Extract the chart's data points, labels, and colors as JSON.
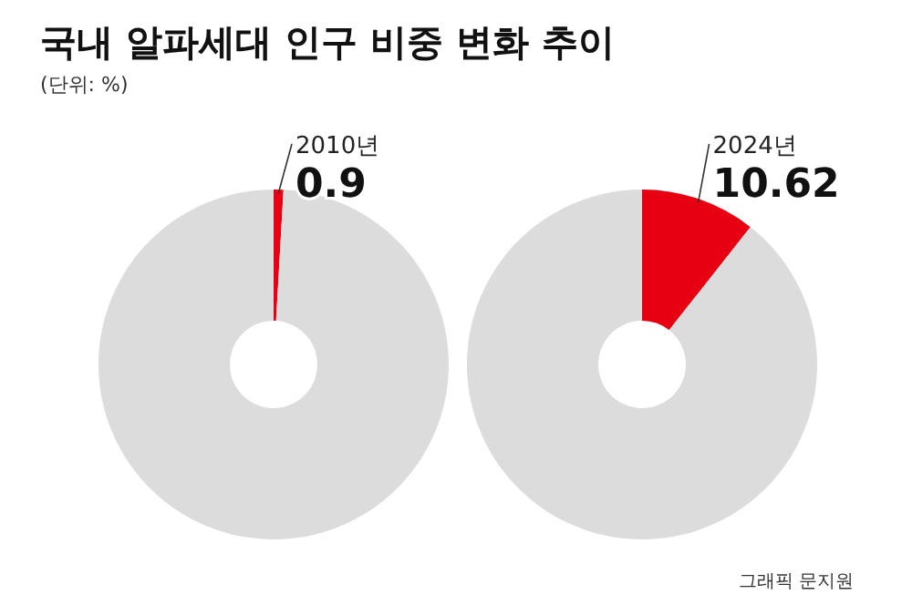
{
  "chart_data": [
    {
      "type": "donut",
      "title": "국내 알파세대 인구 비중 변화 추이",
      "annotations": [
        "(단위: %)"
      ],
      "categories": [
        "2010년",
        null
      ],
      "values": [
        0.9,
        99.1
      ],
      "colors": [
        "#e60012",
        "#dcdcdc"
      ],
      "value_labels": [
        "0.9",
        null
      ]
    },
    {
      "type": "donut",
      "annotations": [
        "그래픽 문지원"
      ],
      "categories": [
        "2024년",
        null
      ],
      "values": [
        10.62,
        89.38
      ],
      "colors": [
        "#e60012",
        "#dcdcdc"
      ],
      "value_labels": [
        "10.62",
        null
      ]
    }
  ]
}
